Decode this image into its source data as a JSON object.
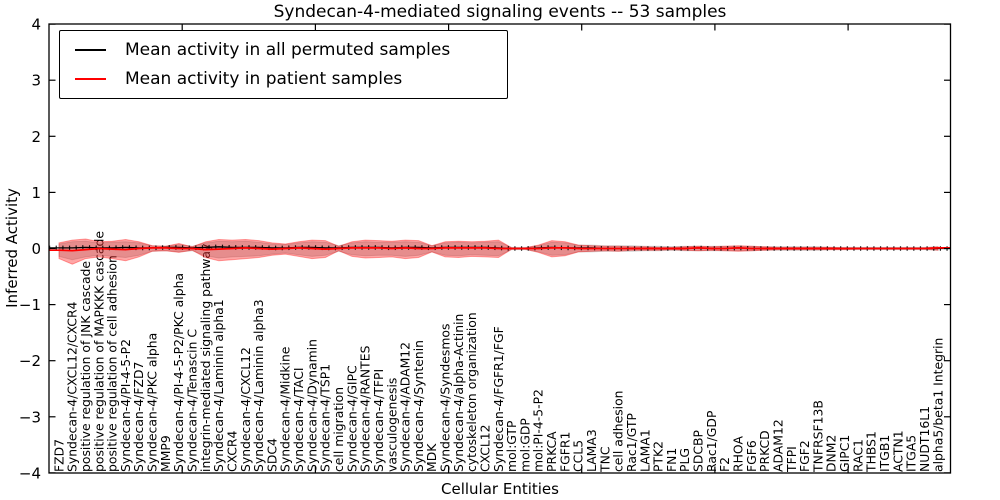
{
  "title": "Syndecan-4-mediated signaling events -- 53 samples",
  "axes": {
    "ylabel": "Inferred Activity",
    "xlabel": "Cellular Entities"
  },
  "legend": {
    "entries": [
      {
        "label": "Mean activity in all permuted samples",
        "color": "#000000"
      },
      {
        "label": "Mean activity in patient samples",
        "color": "#ff0000"
      }
    ]
  },
  "chart_data": {
    "type": "line",
    "title": "Syndecan-4-mediated signaling events -- 53 samples",
    "xlabel": "Cellular Entities",
    "ylabel": "Inferred Activity",
    "ylim": [
      -4,
      4
    ],
    "yticks": [
      4,
      3,
      2,
      1,
      0,
      -1,
      -2,
      -3,
      -4
    ],
    "ytick_labels": [
      "4",
      "3",
      "2",
      "1",
      "0",
      "−1",
      "−2",
      "−3",
      "−4"
    ],
    "grid": false,
    "legend_position": "upper left",
    "categories": [
      "FZD7",
      "Syndecan-4/CXCL12/CXCR4",
      "positive regulation of JNK cascade",
      "positive regulation of MAPKKK cascade",
      "positive regulation of cell adhesion",
      "Syndecan-4/PI-4-5-P2",
      "Syndecan-4/FZD7",
      "Syndecan-4/PKC alpha",
      "MMP9",
      "Syndecan-4/PI-4-5-P2/PKC alpha",
      "Syndecan-4/Tenascin C",
      "integrin-mediated signaling pathway",
      "Syndecan-4/Laminin alpha1",
      "CXCR4",
      "Syndecan-4/CXCL12",
      "Syndecan-4/Laminin alpha3",
      "SDC4",
      "Syndecan-4/Midkine",
      "Syndecan-4/TACI",
      "Syndecan-4/Dynamin",
      "Syndecan-4/TSP1",
      "cell migration",
      "Syndecan-4/GIPC",
      "Syndecan-4/RANTES",
      "Syndecan-4/TFPI",
      "vasculogenesis",
      "Syndecan-4/ADAM12",
      "Syndecan-4/Syntenin",
      "MDK",
      "Syndecan-4/Syndesmos",
      "Syndecan-4/alpha-Actinin",
      "cytoskeleton organization",
      "CXCL12",
      "Syndecan-4/FGFR1/FGF",
      "mol:GTP",
      "mol:GDP",
      "mol:PI-4-5-P2",
      "PRKCA",
      "FGFR1",
      "CCL5",
      "LAMA3",
      "TNC",
      "cell adhesion",
      "Rac1/GTP",
      "LAMA1",
      "PTK2",
      "FN1",
      "PLG",
      "SDCBP",
      "Rac1/GDP",
      "F2",
      "RHOA",
      "FGF6",
      "PRKCD",
      "ADAM12",
      "TFPI",
      "FGF2",
      "TNFRSF13B",
      "DNM2",
      "GIPC1",
      "RAC1",
      "THBS1",
      "ITGB1",
      "ACTN1",
      "ITGA5",
      "NUDT16L1",
      "alpha5/beta1 Integrin"
    ],
    "series": [
      {
        "name": "Mean activity in all permuted samples",
        "color": "#000000",
        "values": [
          0.01,
          0.01,
          0.02,
          0.01,
          0.01,
          0.02,
          0.01,
          0.01,
          0.02,
          0.02,
          0.01,
          0.02,
          0.03,
          0.02,
          0.02,
          0.02,
          0.01,
          0.01,
          0.02,
          0.02,
          0.01,
          0.01,
          0.02,
          0.02,
          0.02,
          0.01,
          0.02,
          0.02,
          0.01,
          0.02,
          0.02,
          0.02,
          0.02,
          0.01,
          0.0,
          0.0,
          0.01,
          0.02,
          0.01,
          0.01,
          0.01,
          0.0,
          0.0,
          0.0,
          0.0,
          0.0,
          0.0,
          0.0,
          0.01,
          0.0,
          0.0,
          0.01,
          0.0,
          0.0,
          0.0,
          0.0,
          0.0,
          0.0,
          0.0,
          0.0,
          0.0,
          0.0,
          0.0,
          0.0,
          0.0,
          0.0,
          0.0
        ]
      },
      {
        "name": "Mean activity in patient samples",
        "color": "#ff0000",
        "values": [
          -0.03,
          -0.04,
          -0.02,
          0.0,
          -0.01,
          -0.02,
          0.0,
          0.01,
          0.01,
          0.0,
          0.0,
          -0.02,
          -0.01,
          0.0,
          0.01,
          0.0,
          -0.01,
          0.0,
          0.01,
          0.0,
          -0.01,
          0.0,
          0.01,
          0.01,
          0.01,
          0.0,
          0.01,
          0.0,
          0.0,
          0.01,
          0.01,
          0.01,
          0.01,
          0.0,
          0.0,
          0.0,
          0.0,
          0.01,
          0.01,
          0.0,
          0.0,
          0.0,
          0.0,
          0.0,
          0.0,
          0.0,
          0.0,
          0.0,
          0.01,
          0.0,
          0.0,
          0.01,
          0.0,
          0.0,
          0.0,
          0.0,
          0.0,
          0.0,
          0.0,
          0.0,
          0.0,
          0.0,
          0.0,
          0.0,
          0.0,
          0.0,
          0.01
        ]
      }
    ],
    "bands": [
      {
        "name": "permuted-samples-band",
        "color": "rgba(130,130,130,0.30)",
        "upper": [
          0.08,
          0.12,
          0.13,
          0.1,
          0.11,
          0.12,
          0.1,
          0.05,
          0.04,
          0.07,
          0.04,
          0.1,
          0.13,
          0.12,
          0.13,
          0.11,
          0.08,
          0.07,
          0.1,
          0.12,
          0.11,
          0.05,
          0.1,
          0.12,
          0.11,
          0.11,
          0.12,
          0.11,
          0.05,
          0.1,
          0.11,
          0.1,
          0.11,
          0.12,
          0.02,
          0.02,
          0.05,
          0.11,
          0.1,
          0.06,
          0.06,
          0.05,
          0.05,
          0.05,
          0.04,
          0.04,
          0.03,
          0.04,
          0.04,
          0.04,
          0.04,
          0.04,
          0.04,
          0.03,
          0.03,
          0.03,
          0.03,
          0.03,
          0.02,
          0.02,
          0.02,
          0.02,
          0.02,
          0.02,
          0.02,
          0.02,
          0.03
        ],
        "lower": [
          -0.14,
          -0.2,
          -0.15,
          -0.12,
          -0.14,
          -0.16,
          -0.12,
          -0.05,
          -0.04,
          -0.06,
          -0.04,
          -0.13,
          -0.17,
          -0.15,
          -0.14,
          -0.13,
          -0.1,
          -0.08,
          -0.11,
          -0.14,
          -0.12,
          -0.05,
          -0.11,
          -0.13,
          -0.12,
          -0.12,
          -0.14,
          -0.12,
          -0.06,
          -0.12,
          -0.13,
          -0.11,
          -0.12,
          -0.13,
          -0.02,
          -0.02,
          -0.06,
          -0.12,
          -0.11,
          -0.06,
          -0.06,
          -0.05,
          -0.05,
          -0.05,
          -0.04,
          -0.04,
          -0.03,
          -0.04,
          -0.04,
          -0.04,
          -0.04,
          -0.04,
          -0.04,
          -0.03,
          -0.03,
          -0.03,
          -0.03,
          -0.03,
          -0.02,
          -0.02,
          -0.02,
          -0.02,
          -0.02,
          -0.02,
          -0.02,
          -0.02,
          -0.03
        ]
      },
      {
        "name": "patient-samples-band",
        "color": "rgba(255,0,0,0.35)",
        "upper": [
          0.1,
          0.15,
          0.17,
          0.12,
          0.13,
          0.16,
          0.12,
          0.05,
          0.04,
          0.09,
          0.03,
          0.12,
          0.16,
          0.15,
          0.16,
          0.14,
          0.1,
          0.08,
          0.12,
          0.15,
          0.14,
          0.04,
          0.12,
          0.15,
          0.14,
          0.13,
          0.15,
          0.14,
          0.05,
          0.12,
          0.13,
          0.12,
          0.13,
          0.15,
          0.01,
          0.01,
          0.06,
          0.14,
          0.12,
          0.06,
          0.05,
          0.04,
          0.04,
          0.03,
          0.03,
          0.02,
          0.02,
          0.03,
          0.04,
          0.03,
          0.04,
          0.05,
          0.04,
          0.03,
          0.02,
          0.02,
          0.02,
          0.02,
          0.02,
          0.01,
          0.01,
          0.01,
          0.01,
          0.01,
          0.01,
          0.01,
          0.03
        ],
        "lower": [
          -0.18,
          -0.28,
          -0.18,
          -0.15,
          -0.18,
          -0.22,
          -0.15,
          -0.05,
          -0.04,
          -0.07,
          -0.03,
          -0.16,
          -0.22,
          -0.2,
          -0.18,
          -0.16,
          -0.12,
          -0.1,
          -0.14,
          -0.18,
          -0.16,
          -0.04,
          -0.14,
          -0.17,
          -0.16,
          -0.15,
          -0.18,
          -0.16,
          -0.06,
          -0.15,
          -0.16,
          -0.14,
          -0.15,
          -0.16,
          -0.01,
          -0.01,
          -0.07,
          -0.15,
          -0.13,
          -0.06,
          -0.05,
          -0.04,
          -0.05,
          -0.03,
          -0.03,
          -0.03,
          -0.02,
          -0.03,
          -0.04,
          -0.03,
          -0.04,
          -0.05,
          -0.04,
          -0.03,
          -0.02,
          -0.02,
          -0.02,
          -0.02,
          -0.02,
          -0.02,
          -0.01,
          -0.01,
          -0.01,
          -0.01,
          -0.01,
          -0.01,
          -0.03
        ]
      }
    ],
    "colors": {
      "frame": "#000000",
      "background": "#ffffff"
    }
  }
}
